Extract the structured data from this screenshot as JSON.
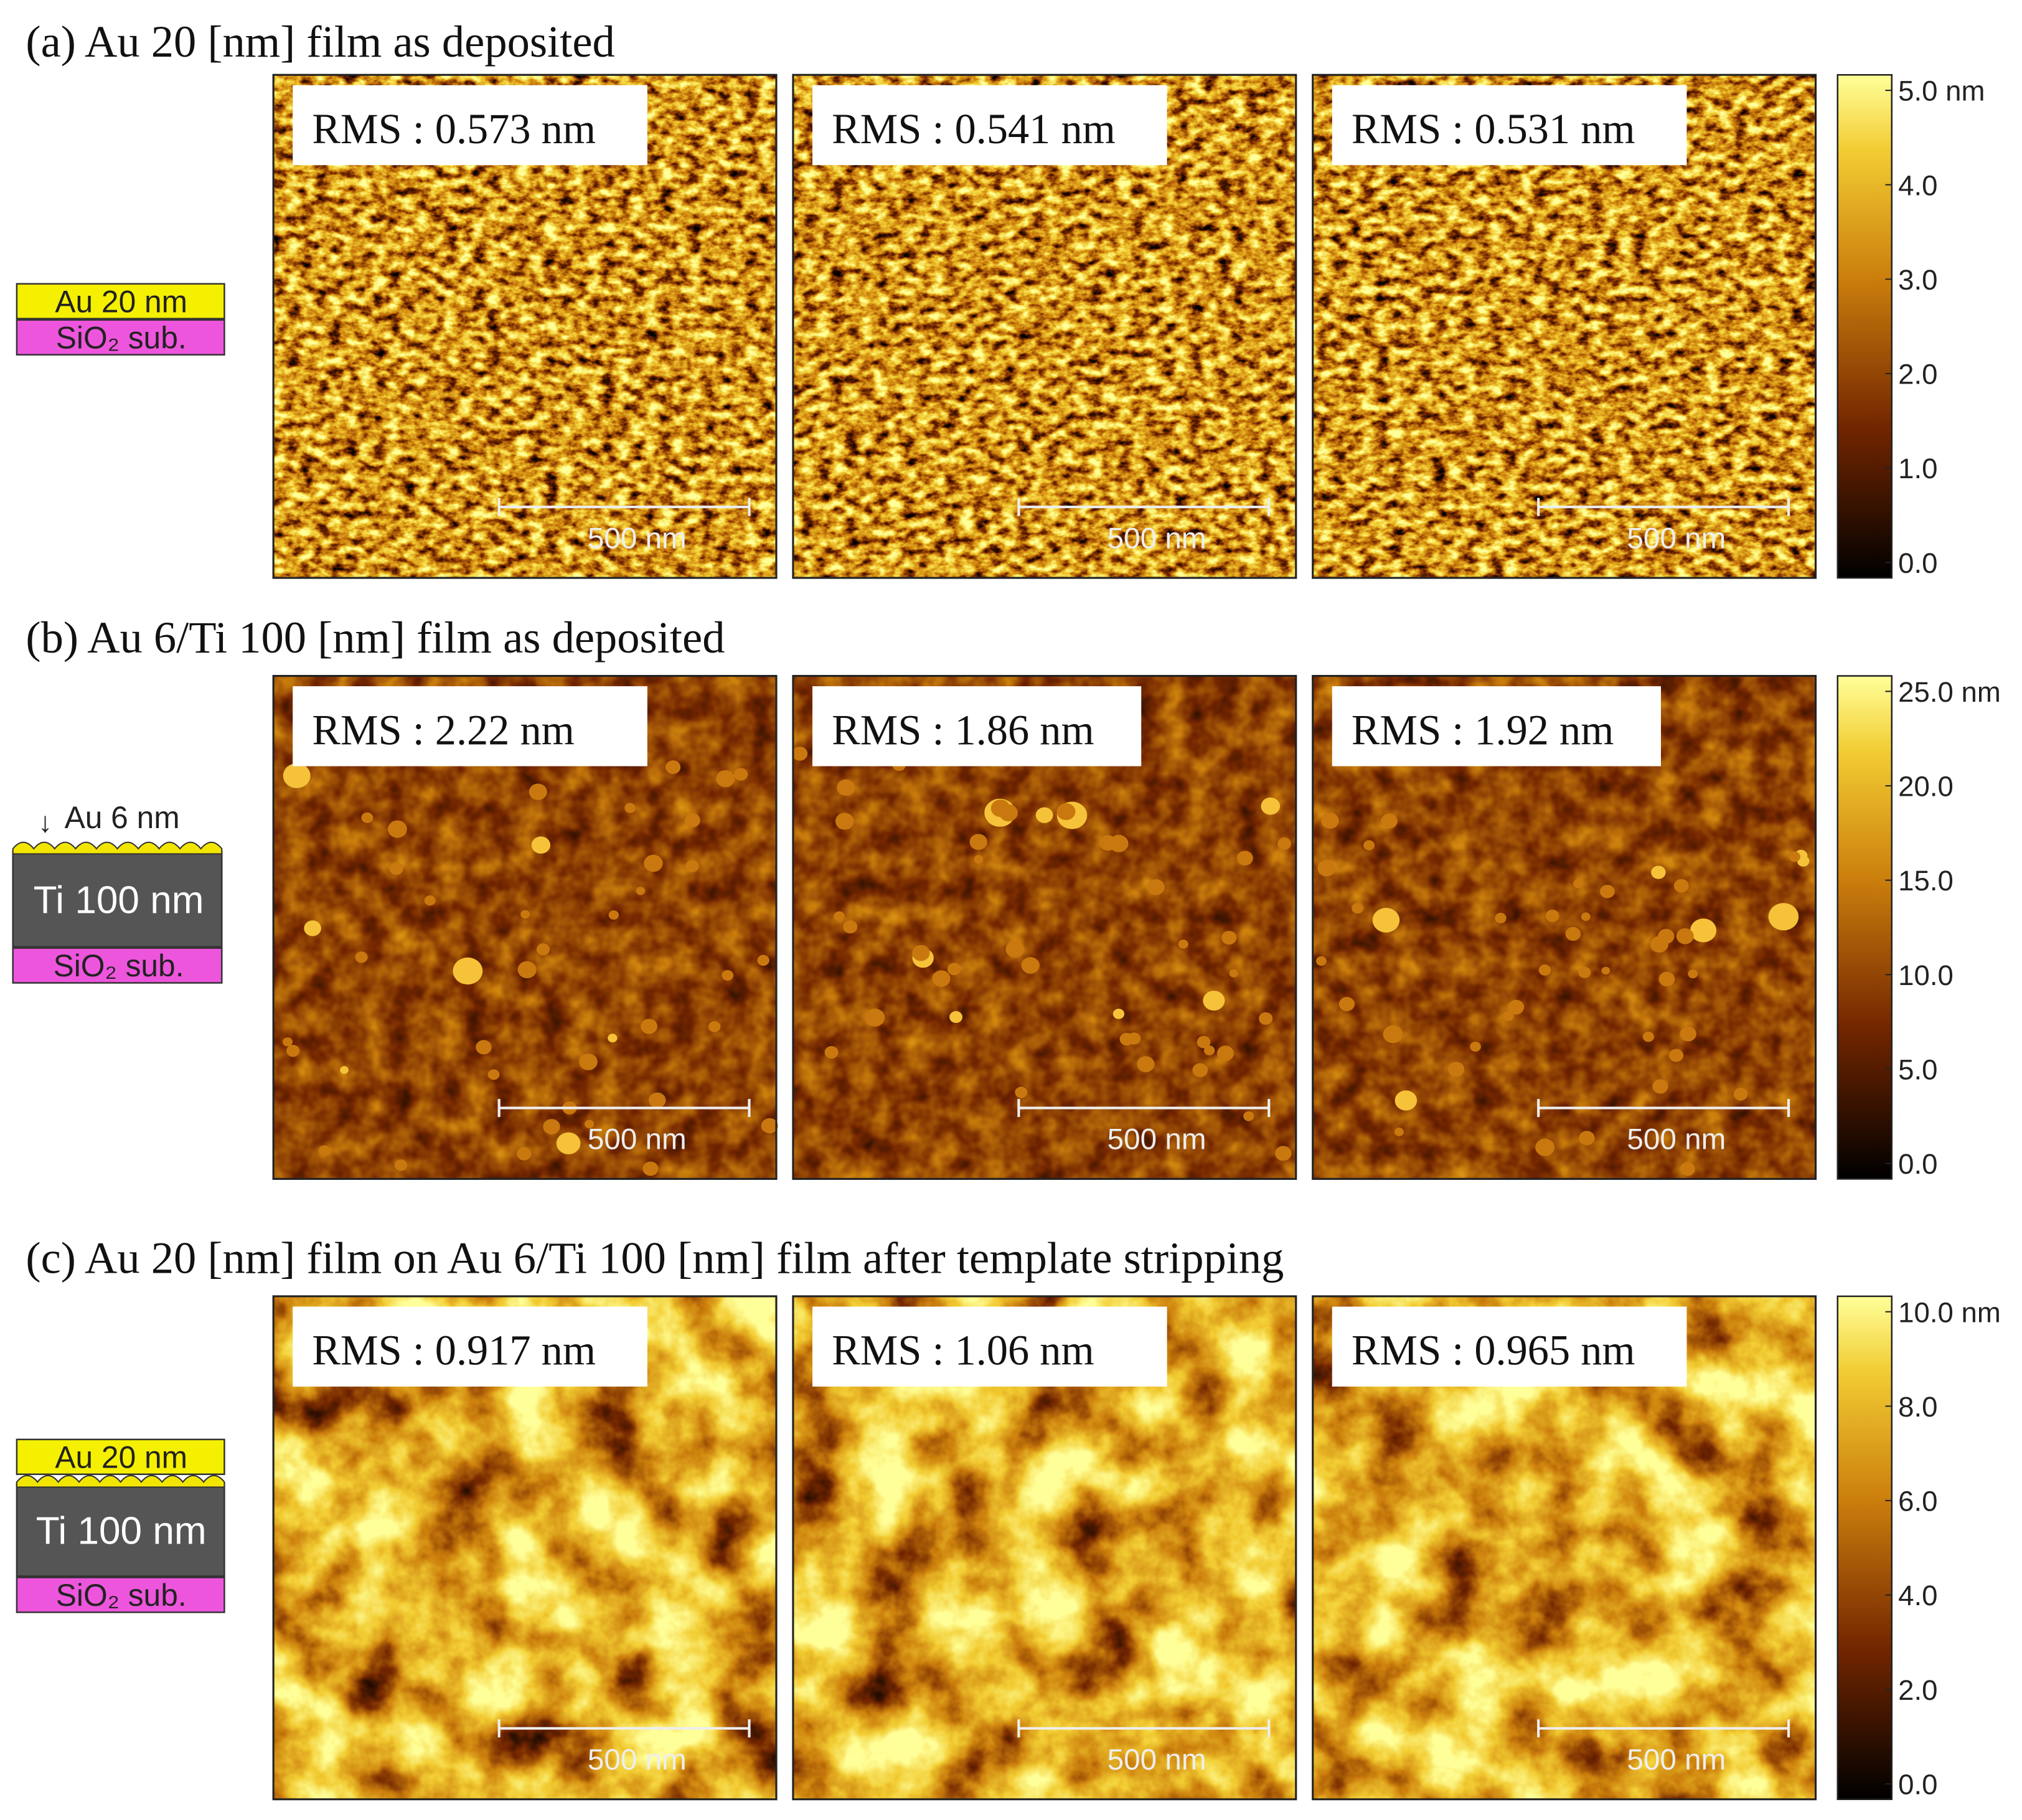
{
  "panels": [
    {
      "title": "(a) Au 20 [nm] film as deposited",
      "stack": [
        "Au 20 nm",
        "SiO₂ sub."
      ],
      "images": [
        {
          "rms": "RMS : 0.573 nm",
          "scale_bar": "500 nm"
        },
        {
          "rms": "RMS : 0.541 nm",
          "scale_bar": "500 nm"
        },
        {
          "rms": "RMS : 0.531 nm",
          "scale_bar": "500 nm"
        }
      ],
      "colorbar": [
        "5.0 nm",
        "4.0",
        "3.0",
        "2.0",
        "1.0",
        "0.0"
      ]
    },
    {
      "title": "(b) Au 6/Ti 100 [nm] film as deposited",
      "stack": [
        "Au 6 nm",
        "Ti 100 nm",
        "SiO₂ sub."
      ],
      "images": [
        {
          "rms": "RMS : 2.22 nm",
          "scale_bar": "500 nm"
        },
        {
          "rms": "RMS : 1.86 nm",
          "scale_bar": "500 nm"
        },
        {
          "rms": "RMS : 1.92 nm",
          "scale_bar": "500 nm"
        }
      ],
      "colorbar": [
        "25.0 nm",
        "20.0",
        "15.0",
        "10.0",
        "5.0",
        "0.0"
      ]
    },
    {
      "title": "(c) Au 20 [nm] film on Au 6/Ti 100 [nm] film after template stripping",
      "stack": [
        "Au 20 nm",
        "Ti 100 nm",
        "SiO₂ sub."
      ],
      "images": [
        {
          "rms": "RMS : 0.917 nm",
          "scale_bar": "500 nm"
        },
        {
          "rms": "RMS : 1.06 nm",
          "scale_bar": "500 nm"
        },
        {
          "rms": "RMS : 0.965 nm",
          "scale_bar": "500 nm"
        }
      ],
      "colorbar": [
        "10.0 nm",
        "8.0",
        "6.0",
        "4.0",
        "2.0",
        "0.0"
      ]
    }
  ]
}
